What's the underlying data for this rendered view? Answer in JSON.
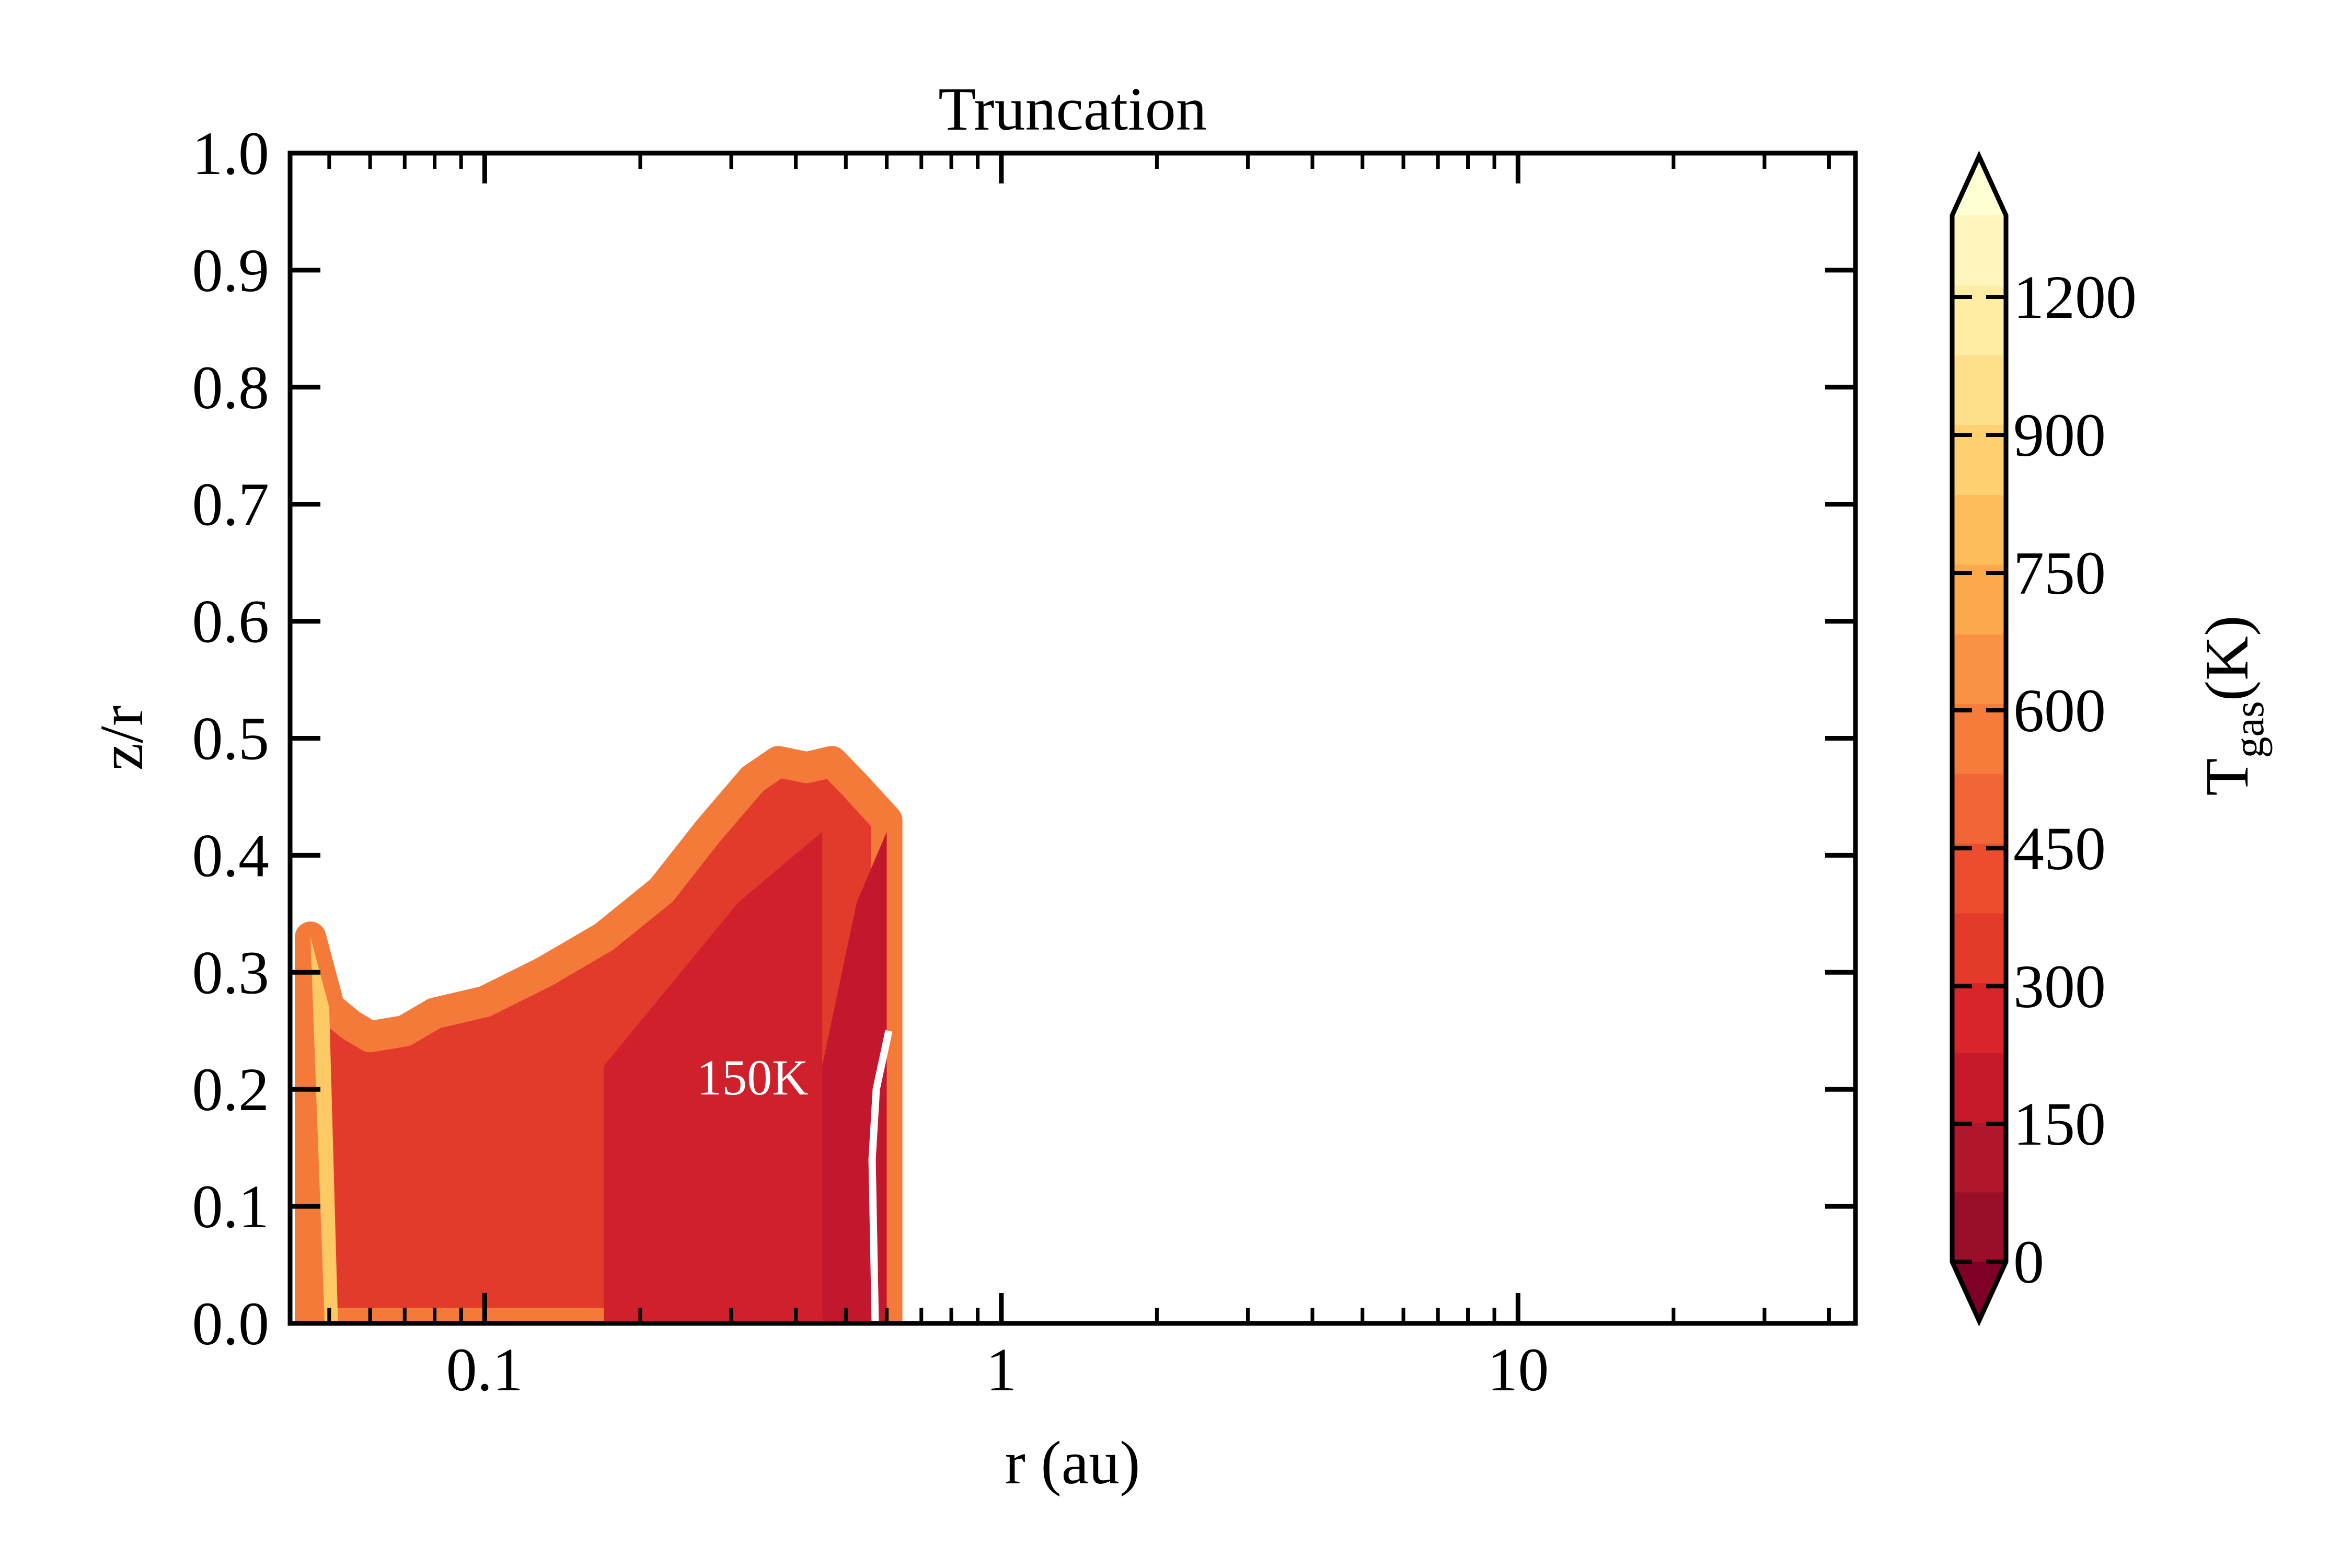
{
  "chart_data": {
    "type": "contourf",
    "title": "Truncation",
    "xlabel": "r (au)",
    "ylabel": "z/r",
    "xscale": "log",
    "xlim": [
      0.042,
      45
    ],
    "ylim": [
      0.0,
      1.0
    ],
    "x_ticks": [
      {
        "value": 0.1,
        "label": "0.1"
      },
      {
        "value": 1,
        "label": "1"
      },
      {
        "value": 10,
        "label": "10"
      }
    ],
    "y_ticks": [
      {
        "value": 0.0,
        "label": "0.0"
      },
      {
        "value": 0.1,
        "label": "0.1"
      },
      {
        "value": 0.2,
        "label": "0.2"
      },
      {
        "value": 0.3,
        "label": "0.3"
      },
      {
        "value": 0.4,
        "label": "0.4"
      },
      {
        "value": 0.5,
        "label": "0.5"
      },
      {
        "value": 0.6,
        "label": "0.6"
      },
      {
        "value": 0.7,
        "label": "0.7"
      },
      {
        "value": 0.8,
        "label": "0.8"
      },
      {
        "value": 0.9,
        "label": "0.9"
      },
      {
        "value": 1.0,
        "label": "1.0"
      }
    ],
    "colorbar": {
      "label_main": "T",
      "label_sub": "gas",
      "label_tail": "(K)",
      "ticks": [
        {
          "value": 0,
          "label": "0"
        },
        {
          "value": 150,
          "label": "150"
        },
        {
          "value": 300,
          "label": "300"
        },
        {
          "value": 450,
          "label": "450"
        },
        {
          "value": 600,
          "label": "600"
        },
        {
          "value": 750,
          "label": "750"
        },
        {
          "value": 900,
          "label": "900"
        },
        {
          "value": 1200,
          "label": "1200"
        }
      ],
      "colors": [
        "#7f0026",
        "#990e28",
        "#b0172a",
        "#c8192b",
        "#d9252a",
        "#e43a2a",
        "#ec4d2e",
        "#f26536",
        "#f57c3b",
        "#f99242",
        "#fca94c",
        "#fdbd5b",
        "#fed070",
        "#fee08b",
        "#ffeda4",
        "#fff6be",
        "#ffffd4"
      ],
      "extend": "both"
    },
    "contour_annotation": {
      "label": "150K",
      "level_K": 150,
      "r_au": 0.57
    },
    "filled_region": {
      "r_min_au": 0.046,
      "r_max_au": 0.6,
      "upper_boundary": [
        [
          0.046,
          0.33
        ],
        [
          0.05,
          0.27
        ],
        [
          0.055,
          0.255
        ],
        [
          0.06,
          0.245
        ],
        [
          0.07,
          0.25
        ],
        [
          0.08,
          0.265
        ],
        [
          0.1,
          0.275
        ],
        [
          0.13,
          0.3
        ],
        [
          0.17,
          0.33
        ],
        [
          0.22,
          0.37
        ],
        [
          0.27,
          0.42
        ],
        [
          0.33,
          0.465
        ],
        [
          0.37,
          0.48
        ],
        [
          0.42,
          0.475
        ],
        [
          0.47,
          0.48
        ],
        [
          0.52,
          0.46
        ],
        [
          0.6,
          0.43
        ]
      ]
    }
  }
}
